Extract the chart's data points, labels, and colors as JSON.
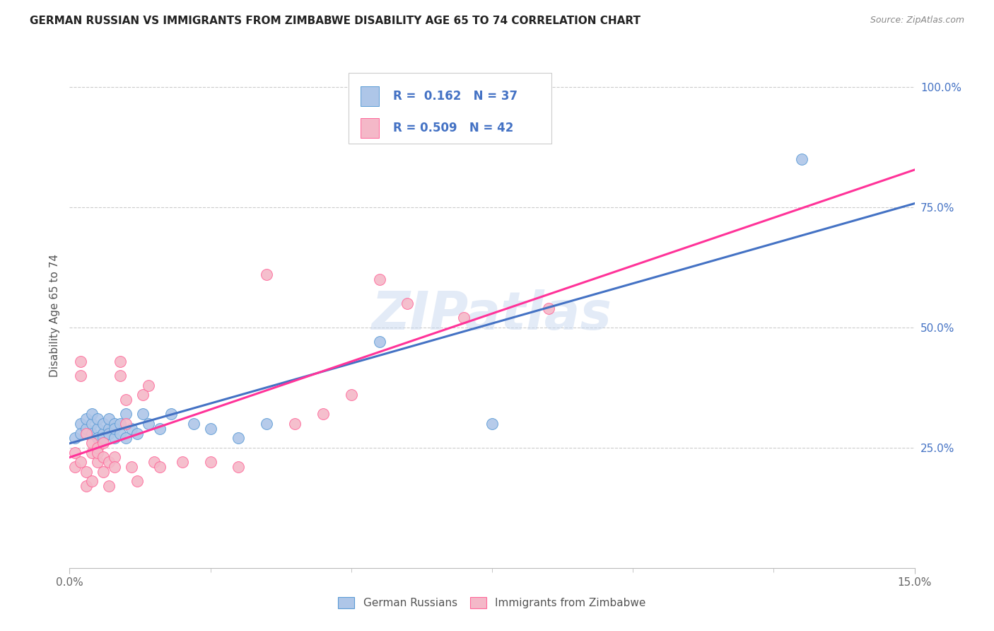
{
  "title": "GERMAN RUSSIAN VS IMMIGRANTS FROM ZIMBABWE DISABILITY AGE 65 TO 74 CORRELATION CHART",
  "source": "Source: ZipAtlas.com",
  "ylabel": "Disability Age 65 to 74",
  "xmin": 0.0,
  "xmax": 0.15,
  "ymin": 0.0,
  "ymax": 1.05,
  "color_blue": "#AEC6E8",
  "color_pink": "#F4B8C8",
  "color_blue_border": "#5B9BD5",
  "color_pink_border": "#FF6699",
  "color_blue_line": "#4472C4",
  "color_pink_line": "#FF3399",
  "color_legend_text": "#4472C4",
  "background_color": "#FFFFFF",
  "grid_color": "#CCCCCC",
  "blue_points_x": [
    0.001,
    0.002,
    0.002,
    0.003,
    0.003,
    0.004,
    0.004,
    0.004,
    0.005,
    0.005,
    0.005,
    0.006,
    0.006,
    0.006,
    0.007,
    0.007,
    0.007,
    0.008,
    0.008,
    0.008,
    0.009,
    0.009,
    0.01,
    0.01,
    0.011,
    0.012,
    0.013,
    0.014,
    0.016,
    0.018,
    0.022,
    0.025,
    0.03,
    0.035,
    0.055,
    0.075,
    0.13
  ],
  "blue_points_y": [
    0.27,
    0.3,
    0.28,
    0.29,
    0.31,
    0.3,
    0.32,
    0.28,
    0.29,
    0.27,
    0.31,
    0.28,
    0.3,
    0.27,
    0.29,
    0.31,
    0.28,
    0.3,
    0.27,
    0.29,
    0.3,
    0.28,
    0.32,
    0.27,
    0.29,
    0.28,
    0.32,
    0.3,
    0.29,
    0.32,
    0.3,
    0.29,
    0.27,
    0.3,
    0.47,
    0.3,
    0.85
  ],
  "pink_points_x": [
    0.001,
    0.001,
    0.002,
    0.002,
    0.002,
    0.003,
    0.003,
    0.003,
    0.004,
    0.004,
    0.004,
    0.005,
    0.005,
    0.005,
    0.006,
    0.006,
    0.006,
    0.007,
    0.007,
    0.008,
    0.008,
    0.009,
    0.009,
    0.01,
    0.01,
    0.011,
    0.012,
    0.013,
    0.014,
    0.015,
    0.016,
    0.02,
    0.025,
    0.03,
    0.035,
    0.04,
    0.045,
    0.05,
    0.055,
    0.06,
    0.07,
    0.085
  ],
  "pink_points_y": [
    0.24,
    0.21,
    0.43,
    0.4,
    0.22,
    0.28,
    0.2,
    0.17,
    0.24,
    0.26,
    0.18,
    0.25,
    0.22,
    0.24,
    0.23,
    0.26,
    0.2,
    0.22,
    0.17,
    0.23,
    0.21,
    0.43,
    0.4,
    0.3,
    0.35,
    0.21,
    0.18,
    0.36,
    0.38,
    0.22,
    0.21,
    0.22,
    0.22,
    0.21,
    0.61,
    0.3,
    0.32,
    0.36,
    0.6,
    0.55,
    0.52,
    0.54
  ],
  "legend_label1": "German Russians",
  "legend_label2": "Immigrants from Zimbabwe",
  "watermark": "ZIPatlas"
}
